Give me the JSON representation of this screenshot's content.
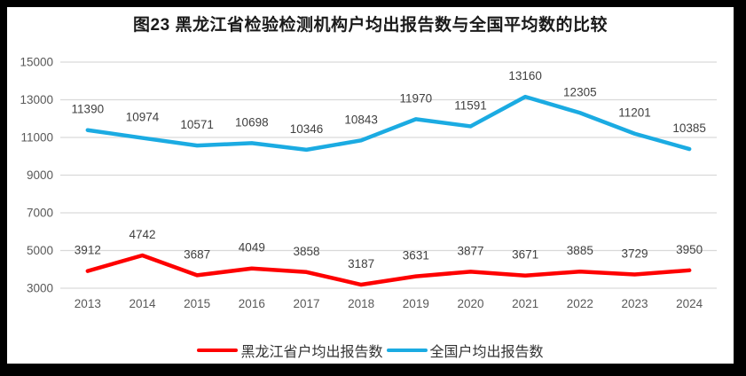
{
  "title": "图23 黑龙江省检验检测机构户均出报告数与全国平均数的比较",
  "chart_data": {
    "type": "line",
    "title": "图23 黑龙江省检验检测机构户均出报告数与全国平均数的比较",
    "categories": [
      "2013",
      "2014",
      "2015",
      "2016",
      "2017",
      "2018",
      "2019",
      "2020",
      "2021",
      "2022",
      "2023",
      "2024"
    ],
    "series": [
      {
        "name": "黑龙江省户均出报告数",
        "color": "#fe0000",
        "values": [
          3912,
          4742,
          3687,
          4049,
          3858,
          3187,
          3631,
          3877,
          3671,
          3885,
          3729,
          3950
        ]
      },
      {
        "name": "全国户均出报告数",
        "color": "#1babe2",
        "values": [
          11390,
          10974,
          10571,
          10698,
          10346,
          10843,
          11970,
          11591,
          13160,
          12305,
          11201,
          10385
        ]
      }
    ],
    "y_axis": {
      "min": 3000,
      "max": 15000,
      "step": 2000,
      "ticks": [
        3000,
        5000,
        7000,
        9000,
        11000,
        13000,
        15000
      ]
    },
    "x_axis_label": "",
    "y_axis_label": "",
    "grid": "horizontal",
    "data_labels": true,
    "legend_position": "bottom"
  },
  "colors": {
    "frame": "#000000",
    "background": "#ffffff",
    "gridline": "#d9d9d9",
    "tick_label": "#595959",
    "data_label": "#404040",
    "title_text": "#1a1a1a",
    "legend_text": "#333333"
  }
}
